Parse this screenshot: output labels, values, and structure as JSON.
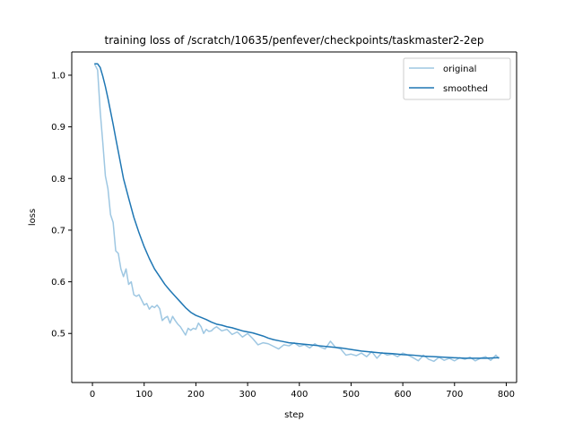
{
  "chart_data": {
    "type": "line",
    "title": "training loss of /scratch/10635/penfever/checkpoints/taskmaster2-2ep",
    "xlabel": "step",
    "ylabel": "loss",
    "xlim": [
      -40,
      820
    ],
    "ylim": [
      0.405,
      1.045
    ],
    "xticks": [
      0,
      100,
      200,
      300,
      400,
      500,
      600,
      700,
      800
    ],
    "yticks": [
      0.5,
      0.6,
      0.7,
      0.8,
      0.9,
      1.0
    ],
    "xtick_labels": [
      "0",
      "100",
      "200",
      "300",
      "400",
      "500",
      "600",
      "700",
      "800"
    ],
    "ytick_labels": [
      "0.5",
      "0.6",
      "0.7",
      "0.8",
      "0.9",
      "1.0"
    ],
    "grid": false,
    "legend_position": "top-right",
    "series": [
      {
        "name": "original",
        "color": "#9ec7e2",
        "x": [
          5,
          10,
          15,
          20,
          25,
          30,
          35,
          40,
          45,
          50,
          55,
          60,
          65,
          70,
          75,
          80,
          85,
          90,
          95,
          100,
          105,
          110,
          115,
          120,
          125,
          130,
          135,
          140,
          145,
          150,
          155,
          160,
          165,
          170,
          175,
          180,
          185,
          190,
          195,
          200,
          205,
          210,
          215,
          220,
          225,
          230,
          235,
          240,
          250,
          260,
          270,
          280,
          290,
          300,
          310,
          320,
          330,
          340,
          350,
          360,
          370,
          380,
          390,
          400,
          410,
          420,
          430,
          440,
          450,
          460,
          470,
          480,
          490,
          500,
          510,
          520,
          530,
          540,
          550,
          560,
          570,
          580,
          590,
          600,
          610,
          620,
          630,
          640,
          650,
          660,
          670,
          680,
          690,
          700,
          710,
          720,
          730,
          740,
          750,
          760,
          770,
          780,
          785
        ],
        "values": [
          1.02,
          1.01,
          0.93,
          0.87,
          0.805,
          0.78,
          0.73,
          0.715,
          0.66,
          0.655,
          0.625,
          0.61,
          0.625,
          0.595,
          0.6,
          0.575,
          0.572,
          0.575,
          0.565,
          0.555,
          0.558,
          0.547,
          0.553,
          0.55,
          0.555,
          0.548,
          0.525,
          0.53,
          0.533,
          0.52,
          0.533,
          0.525,
          0.518,
          0.513,
          0.505,
          0.497,
          0.51,
          0.506,
          0.51,
          0.508,
          0.52,
          0.513,
          0.5,
          0.508,
          0.504,
          0.505,
          0.51,
          0.513,
          0.505,
          0.508,
          0.498,
          0.503,
          0.493,
          0.5,
          0.49,
          0.478,
          0.482,
          0.48,
          0.475,
          0.47,
          0.478,
          0.476,
          0.482,
          0.475,
          0.478,
          0.472,
          0.48,
          0.474,
          0.47,
          0.485,
          0.473,
          0.47,
          0.458,
          0.46,
          0.457,
          0.462,
          0.455,
          0.465,
          0.452,
          0.463,
          0.458,
          0.46,
          0.455,
          0.462,
          0.458,
          0.453,
          0.447,
          0.458,
          0.45,
          0.446,
          0.454,
          0.448,
          0.452,
          0.447,
          0.453,
          0.45,
          0.454,
          0.447,
          0.452,
          0.455,
          0.448,
          0.458,
          0.452
        ]
      },
      {
        "name": "smoothed",
        "color": "#1f77b4",
        "x": [
          5,
          10,
          15,
          20,
          25,
          30,
          35,
          40,
          45,
          50,
          55,
          60,
          70,
          80,
          90,
          100,
          110,
          120,
          130,
          140,
          150,
          160,
          170,
          180,
          190,
          200,
          210,
          220,
          230,
          240,
          250,
          260,
          270,
          280,
          290,
          300,
          310,
          320,
          330,
          340,
          350,
          360,
          370,
          380,
          390,
          400,
          420,
          440,
          460,
          480,
          500,
          520,
          540,
          560,
          580,
          600,
          620,
          640,
          660,
          680,
          700,
          720,
          740,
          760,
          785
        ],
        "values": [
          1.022,
          1.022,
          1.015,
          0.998,
          0.978,
          0.955,
          0.93,
          0.905,
          0.878,
          0.852,
          0.826,
          0.8,
          0.762,
          0.725,
          0.695,
          0.668,
          0.645,
          0.625,
          0.61,
          0.595,
          0.583,
          0.572,
          0.561,
          0.55,
          0.541,
          0.535,
          0.531,
          0.527,
          0.522,
          0.518,
          0.516,
          0.513,
          0.511,
          0.508,
          0.505,
          0.503,
          0.501,
          0.498,
          0.495,
          0.491,
          0.488,
          0.486,
          0.484,
          0.482,
          0.481,
          0.48,
          0.478,
          0.476,
          0.474,
          0.472,
          0.469,
          0.466,
          0.464,
          0.462,
          0.461,
          0.459,
          0.458,
          0.456,
          0.455,
          0.454,
          0.453,
          0.452,
          0.452,
          0.452,
          0.453
        ]
      }
    ]
  }
}
